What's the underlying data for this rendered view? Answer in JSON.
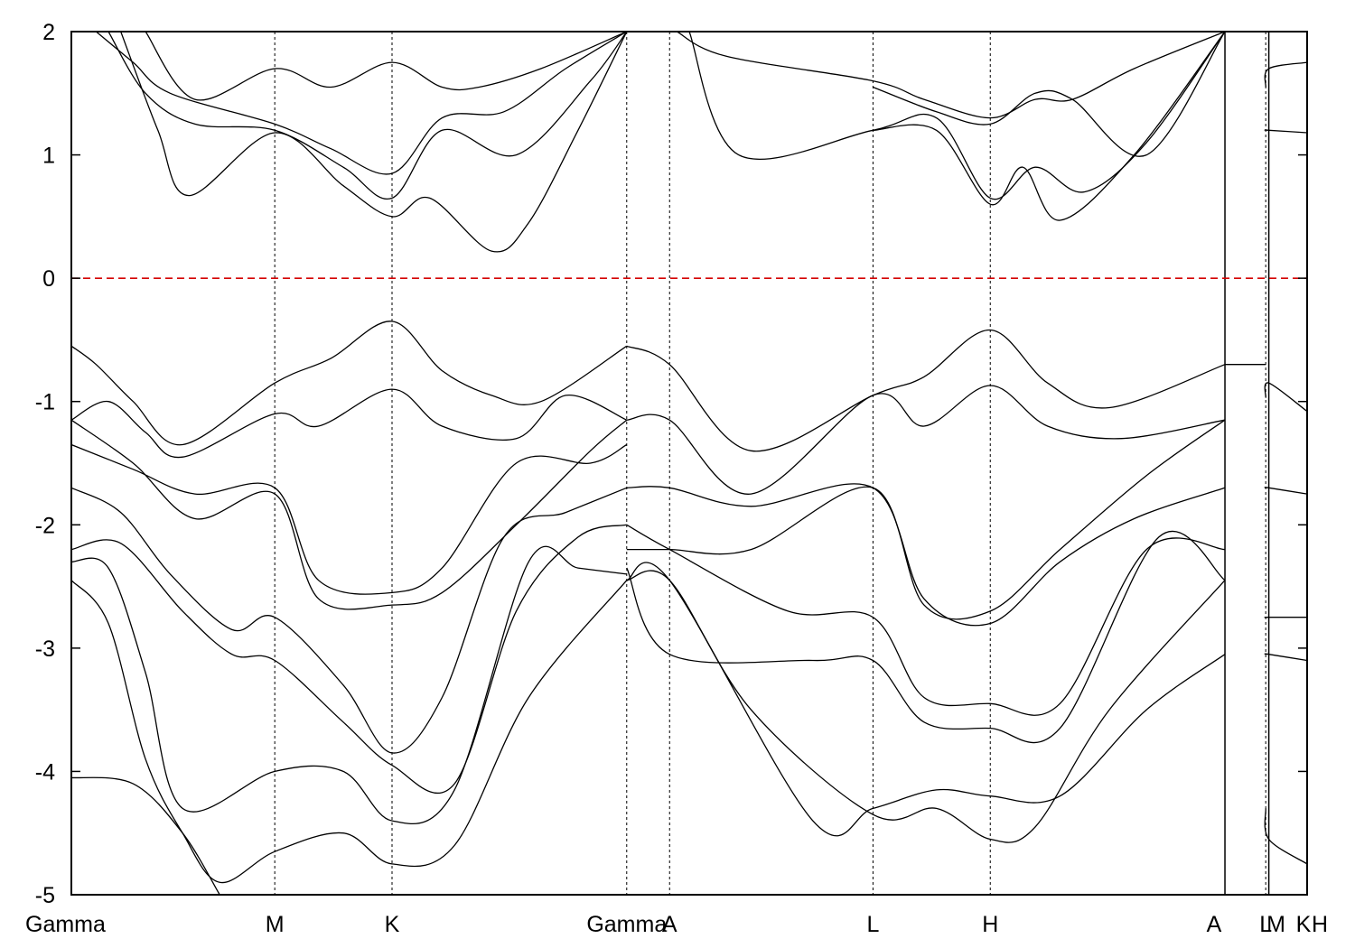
{
  "chart_data": {
    "type": "line",
    "title": "",
    "xlabel": "",
    "ylabel": "",
    "ylim": [
      -5,
      2
    ],
    "y_ticks": [
      2,
      1,
      0,
      -1,
      -2,
      -3,
      -4,
      -5
    ],
    "xlim": [
      0,
      1.0
    ],
    "k_points": [
      {
        "label": "Gamma",
        "x": 0.0
      },
      {
        "label": "M",
        "x": 0.1646
      },
      {
        "label": "K",
        "x": 0.2595
      },
      {
        "label": "Gamma",
        "x": 0.4494
      },
      {
        "label": "A",
        "x": 0.4841
      },
      {
        "label": "L",
        "x": 0.6487
      },
      {
        "label": "H",
        "x": 0.7436
      },
      {
        "label": "A",
        "x": 0.9335
      },
      {
        "label": "L",
        "x": 0.9665
      },
      {
        "label": "M",
        "x": 0.969
      },
      {
        "label": "K",
        "x": 1.0
      },
      {
        "label": "H",
        "x": 1.0
      }
    ],
    "fermi_level": 0,
    "fermi_color": "#d40000",
    "series": [
      {
        "x": [
          0.0,
          0.02,
          0.05,
          0.09,
          0.1646,
          0.21,
          0.2595,
          0.3,
          0.34,
          0.38,
          0.4494
        ],
        "values": [
          -0.55,
          -0.7,
          -1.0,
          -1.35,
          -0.85,
          -0.65,
          -0.35,
          -0.75,
          -0.95,
          -1.0,
          -0.55
        ]
      },
      {
        "x": [
          0.0,
          0.03,
          0.06,
          0.09,
          0.1646,
          0.2,
          0.2595,
          0.3,
          0.36,
          0.4,
          0.4494
        ],
        "values": [
          -1.15,
          -1.0,
          -1.25,
          -1.45,
          -1.1,
          -1.2,
          -0.9,
          -1.2,
          -1.3,
          -0.95,
          -1.15
        ]
      },
      {
        "x": [
          0.0,
          0.05,
          0.1,
          0.1646,
          0.2,
          0.2595,
          0.3,
          0.36,
          0.42,
          0.4494
        ],
        "values": [
          -1.35,
          -1.55,
          -1.75,
          -1.7,
          -2.45,
          -2.55,
          -2.35,
          -1.5,
          -1.5,
          -1.35
        ]
      },
      {
        "x": [
          0.0,
          0.05,
          0.1,
          0.1646,
          0.2,
          0.2595,
          0.3,
          0.36,
          0.42,
          0.4494
        ],
        "values": [
          -1.15,
          -1.5,
          -1.95,
          -1.75,
          -2.6,
          -2.65,
          -2.55,
          -2.0,
          -1.4,
          -1.15
        ]
      },
      {
        "x": [
          0.0,
          0.04,
          0.08,
          0.13,
          0.1646,
          0.22,
          0.2595,
          0.3,
          0.35,
          0.4,
          0.4494
        ],
        "values": [
          -1.7,
          -1.9,
          -2.4,
          -2.85,
          -2.75,
          -3.3,
          -3.85,
          -3.4,
          -2.1,
          -1.9,
          -1.7
        ]
      },
      {
        "x": [
          0.0,
          0.04,
          0.09,
          0.13,
          0.1646,
          0.22,
          0.2595,
          0.31,
          0.36,
          0.41,
          0.4494
        ],
        "values": [
          -2.2,
          -2.15,
          -2.7,
          -3.05,
          -3.1,
          -3.6,
          -3.95,
          -4.1,
          -2.7,
          -2.1,
          -2.0
        ]
      },
      {
        "x": [
          0.0,
          0.03,
          0.06,
          0.09,
          0.1646,
          0.22,
          0.2595,
          0.31,
          0.37,
          0.41,
          0.4494
        ],
        "values": [
          -2.3,
          -2.35,
          -3.2,
          -4.3,
          -4.0,
          -4.0,
          -4.4,
          -4.15,
          -2.3,
          -2.35,
          -2.4
        ]
      },
      {
        "x": [
          0.0,
          0.03,
          0.06,
          0.09,
          0.12,
          0.1646,
          0.22,
          0.2595,
          0.31,
          0.37,
          0.4494
        ],
        "values": [
          -2.45,
          -2.8,
          -3.9,
          -4.5,
          -4.9,
          -4.65,
          -4.5,
          -4.75,
          -4.6,
          -3.4,
          -2.45
        ]
      },
      {
        "x": [
          0.0,
          0.05,
          0.09,
          0.12
        ],
        "values": [
          -4.05,
          -4.1,
          -4.5,
          -5.0
        ]
      },
      {
        "x": [
          0.02,
          0.05,
          0.08,
          0.1646,
          0.21,
          0.2595,
          0.3,
          0.35,
          0.4,
          0.4494
        ],
        "values": [
          2.0,
          1.75,
          1.5,
          1.25,
          1.05,
          0.85,
          1.3,
          1.35,
          1.7,
          2.0
        ]
      },
      {
        "x": [
          0.03,
          0.06,
          0.1,
          0.1646,
          0.22,
          0.2595,
          0.3,
          0.36,
          0.42,
          0.4494
        ],
        "values": [
          2.0,
          1.5,
          1.25,
          1.2,
          0.9,
          0.65,
          1.2,
          1.0,
          1.6,
          2.0
        ]
      },
      {
        "x": [
          0.04,
          0.07,
          0.095,
          0.1646,
          0.22,
          0.2595,
          0.29,
          0.34,
          0.37,
          0.41,
          0.4494
        ],
        "values": [
          2.0,
          1.2,
          0.67,
          1.18,
          0.75,
          0.5,
          0.65,
          0.22,
          0.45,
          1.2,
          2.0
        ]
      },
      {
        "x": [
          0.06,
          0.1,
          0.1646,
          0.21,
          0.2595,
          0.3,
          0.33,
          0.38,
          0.4494
        ],
        "values": [
          2.0,
          1.45,
          1.7,
          1.55,
          1.75,
          1.55,
          1.55,
          1.7,
          2.0
        ]
      },
      {
        "x": [
          0.4494,
          0.4841,
          0.55,
          0.6487,
          0.69,
          0.7436,
          0.79,
          0.84,
          0.9335
        ],
        "values": [
          -0.55,
          -0.7,
          -1.4,
          -0.95,
          -0.8,
          -0.42,
          -0.85,
          -1.05,
          -0.7
        ]
      },
      {
        "x": [
          0.4494,
          0.4841,
          0.55,
          0.6487,
          0.69,
          0.7436,
          0.79,
          0.85,
          0.9335
        ],
        "values": [
          -1.15,
          -1.15,
          -1.75,
          -0.95,
          -1.2,
          -0.87,
          -1.2,
          -1.3,
          -1.15
        ]
      },
      {
        "x": [
          0.4494,
          0.4841,
          0.55,
          0.6487,
          0.69,
          0.7436,
          0.8,
          0.86,
          0.9335
        ],
        "values": [
          -1.7,
          -1.7,
          -1.85,
          -1.7,
          -2.6,
          -2.8,
          -2.3,
          -1.95,
          -1.7
        ]
      },
      {
        "x": [
          0.4494,
          0.4841,
          0.55,
          0.6487,
          0.69,
          0.7436,
          0.8,
          0.87,
          0.9335
        ],
        "values": [
          -2.2,
          -2.2,
          -2.2,
          -1.7,
          -2.65,
          -2.7,
          -2.2,
          -1.6,
          -1.15
        ]
      },
      {
        "x": [
          0.4494,
          0.4841,
          0.58,
          0.6487,
          0.69,
          0.7436,
          0.8,
          0.87,
          0.9335
        ],
        "values": [
          -2.0,
          -2.2,
          -2.7,
          -2.75,
          -3.4,
          -3.45,
          -3.45,
          -2.2,
          -2.2
        ]
      },
      {
        "x": [
          0.4494,
          0.4841,
          0.6,
          0.6487,
          0.69,
          0.7436,
          0.8,
          0.88,
          0.9335
        ],
        "values": [
          -2.35,
          -3.05,
          -3.1,
          -3.1,
          -3.6,
          -3.65,
          -3.65,
          -2.1,
          -2.45
        ]
      },
      {
        "x": [
          0.4494,
          0.4841,
          0.6,
          0.6487,
          0.7,
          0.7436,
          0.8,
          0.87,
          0.9335
        ],
        "values": [
          -2.45,
          -2.45,
          -4.4,
          -4.3,
          -4.15,
          -4.2,
          -4.2,
          -3.5,
          -3.05
        ]
      },
      {
        "x": [
          0.4494,
          0.4841,
          0.55,
          0.6487,
          0.7,
          0.7436,
          0.78,
          0.84,
          0.9335
        ],
        "values": [
          -2.45,
          -2.45,
          -3.5,
          -4.35,
          -4.3,
          -4.55,
          -4.45,
          -3.5,
          -2.45
        ]
      },
      {
        "x": [
          0.49,
          0.53,
          0.6487,
          0.69,
          0.7436,
          0.78,
          0.81,
          0.86,
          0.9335
        ],
        "values": [
          2.0,
          1.8,
          1.6,
          1.45,
          1.3,
          1.45,
          1.45,
          1.7,
          2.0
        ]
      },
      {
        "x": [
          0.5,
          0.54,
          0.6487,
          0.7,
          0.7436,
          0.78,
          0.82,
          0.87,
          0.9335
        ],
        "values": [
          2.0,
          1.0,
          1.2,
          1.3,
          0.65,
          0.9,
          0.7,
          1.1,
          2.0
        ]
      },
      {
        "x": [
          0.6487,
          0.7,
          0.7436,
          0.78,
          0.81,
          0.87,
          0.9335
        ],
        "values": [
          1.55,
          1.35,
          1.25,
          1.5,
          1.45,
          1.0,
          2.0
        ]
      },
      {
        "x": [
          0.6487,
          0.7,
          0.7436,
          0.77,
          0.8,
          0.86,
          0.9335
        ],
        "values": [
          1.2,
          1.2,
          0.6,
          0.9,
          0.47,
          1.0,
          2.0
        ]
      },
      {
        "x": [
          0.9335,
          0.9665
        ],
        "values": [
          -0.7,
          -0.7
        ]
      },
      {
        "x": [
          0.9665,
          0.969,
          1.0
        ],
        "values": [
          -0.97,
          -0.85,
          -1.08
        ]
      },
      {
        "x": [
          0.9665,
          0.969,
          1.0
        ],
        "values": [
          1.55,
          1.7,
          1.75
        ]
      },
      {
        "x": [
          0.9665,
          0.969,
          1.0
        ],
        "values": [
          1.2,
          1.2,
          1.18
        ]
      },
      {
        "x": [
          0.9665,
          0.969,
          1.0
        ],
        "values": [
          -1.7,
          -1.7,
          -1.75
        ]
      },
      {
        "x": [
          0.9665,
          0.969,
          1.0
        ],
        "values": [
          -2.75,
          -2.75,
          -2.75
        ]
      },
      {
        "x": [
          0.9665,
          0.969,
          1.0
        ],
        "values": [
          -3.05,
          -3.05,
          -3.1
        ]
      },
      {
        "x": [
          0.9665,
          0.969,
          1.0
        ],
        "values": [
          -4.3,
          -4.55,
          -4.75
        ]
      }
    ]
  }
}
